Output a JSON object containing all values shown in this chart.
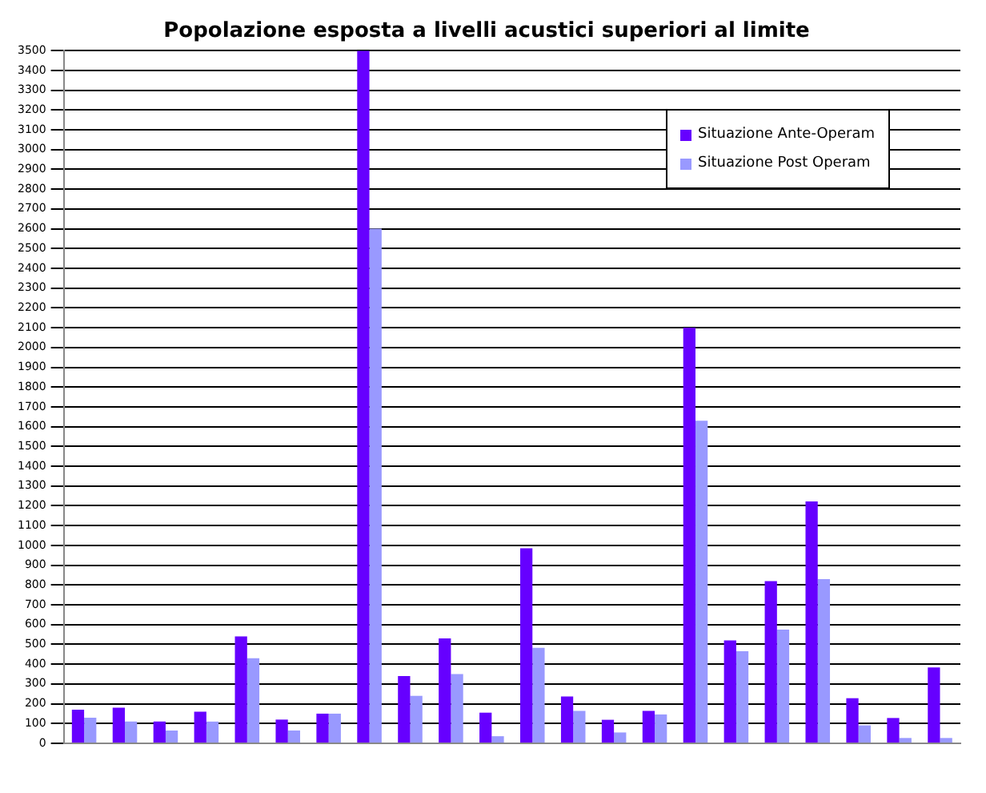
{
  "chart_data": {
    "type": "bar",
    "title": "Popolazione esposta a livelli acustici superiori al limite",
    "categories": [
      null,
      null,
      null,
      null,
      null,
      null,
      null,
      null,
      null,
      null,
      null,
      null,
      null,
      null,
      null,
      null,
      null,
      null,
      null,
      null,
      null,
      null
    ],
    "series": [
      {
        "name": "Situazione Ante-Operam",
        "color": "#6600ff",
        "values": [
          170,
          180,
          110,
          160,
          540,
          120,
          150,
          3500,
          340,
          530,
          155,
          985,
          237,
          119,
          164,
          2100,
          520,
          820,
          1222,
          228,
          128,
          383
        ]
      },
      {
        "name": "Situazione Post Operam",
        "color": "#9999ff",
        "values": [
          130,
          110,
          65,
          110,
          430,
          65,
          150,
          2600,
          240,
          350,
          36,
          483,
          164,
          55,
          146,
          1630,
          465,
          575,
          830,
          91,
          27,
          27
        ]
      }
    ],
    "ylim": [
      0,
      3500
    ],
    "yticks": [
      0,
      100,
      200,
      300,
      400,
      500,
      600,
      700,
      800,
      900,
      1000,
      1100,
      1200,
      1300,
      1400,
      1500,
      1600,
      1700,
      1800,
      1900,
      2000,
      2100,
      2200,
      2300,
      2400,
      2500,
      2600,
      2700,
      2800,
      2900,
      3000,
      3100,
      3200,
      3300,
      3400,
      3500
    ],
    "grid": "y",
    "legend": "top right"
  }
}
